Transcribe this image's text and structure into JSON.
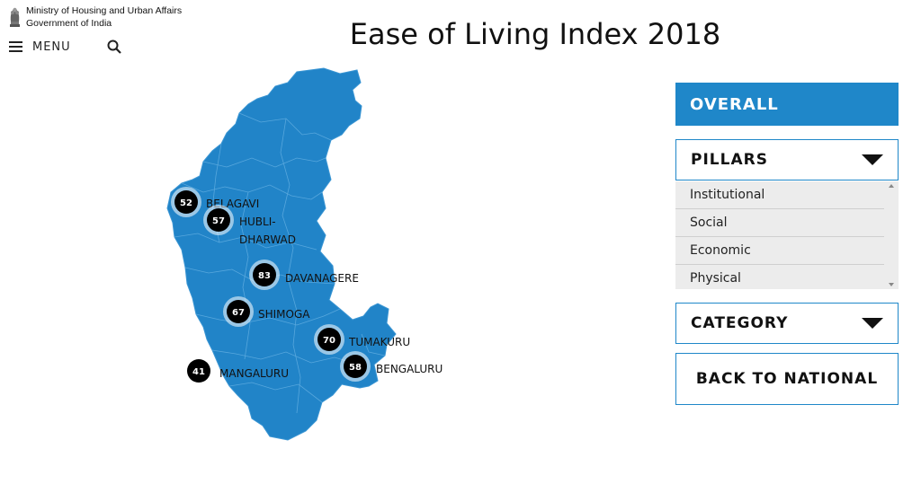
{
  "header": {
    "ministry_line1": "Ministry of Housing and Urban Affairs",
    "ministry_line2": "Government of India",
    "emblem_icon": "national-emblem-icon"
  },
  "nav": {
    "menu_label": "MENU",
    "menu_icon": "hamburger-icon",
    "search_icon": "search-icon"
  },
  "page_title": "Ease of Living Index 2018",
  "colors": {
    "accent": "#1f87c9",
    "map_fill": "#2184c8",
    "marker": "#000000"
  },
  "map": {
    "region": "Karnataka",
    "cities": [
      {
        "name": "BELAGAVI",
        "score": "52"
      },
      {
        "name": "HUBLI-",
        "name2": "DHARWAD",
        "score": "57"
      },
      {
        "name": "DAVANAGERE",
        "score": "83"
      },
      {
        "name": "SHIMOGA",
        "score": "67"
      },
      {
        "name": "TUMAKURU",
        "score": "70"
      },
      {
        "name": "BENGALURU",
        "score": "58"
      },
      {
        "name": "MANGALURU",
        "score": "41"
      }
    ]
  },
  "sidebar": {
    "overall": "OVERALL",
    "pillars": "PILLARS",
    "pillar_items": [
      "Institutional",
      "Social",
      "Economic",
      "Physical"
    ],
    "category": "CATEGORY",
    "back": "BACK TO NATIONAL"
  }
}
